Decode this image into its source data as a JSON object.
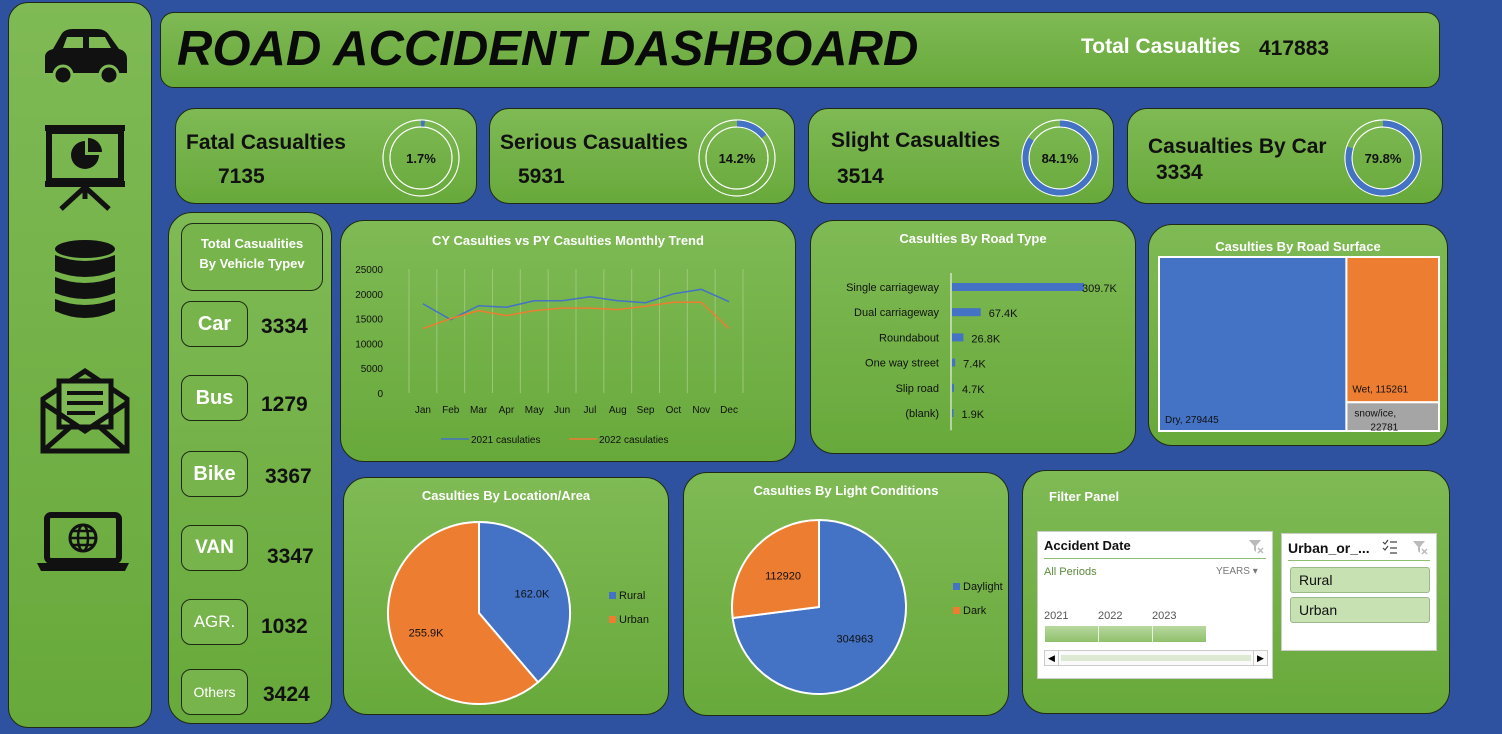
{
  "header": {
    "title": "ROAD ACCIDENT DASHBOARD",
    "total_label": "Total Casualties",
    "total_value": "417883"
  },
  "sidebar": {
    "icons": [
      "car-icon",
      "presentation-icon",
      "database-icon",
      "mail-icon",
      "laptop-globe-icon"
    ]
  },
  "kpis": [
    {
      "label": "Fatal Casualties",
      "value": "7135",
      "percent_label": "1.7%",
      "fraction": 0.017
    },
    {
      "label": "Serious Casualties",
      "value": "5931",
      "percent_label": "14.2%",
      "fraction": 0.142
    },
    {
      "label": "Slight Casualties",
      "value": "3514",
      "percent_label": "84.1%",
      "fraction": 0.841
    },
    {
      "label": "Casualties By Car",
      "value": "3334",
      "percent_label": "79.8%",
      "fraction": 0.798
    }
  ],
  "vehicle": {
    "title_line1": "Total Casualities",
    "title_line2": "By Vehicle Typev",
    "items": [
      {
        "label": "Car",
        "value": "3334"
      },
      {
        "label": "Bus",
        "value": "1279"
      },
      {
        "label": "Bike",
        "value": "3367"
      },
      {
        "label": "VAN",
        "value": "3347"
      },
      {
        "label": "AGR.",
        "value": "1032"
      },
      {
        "label": "Others",
        "value": "3424"
      }
    ]
  },
  "chart_data": [
    {
      "type": "line",
      "title": "CY Casulties vs PY Casulties Monthly Trend",
      "categories": [
        "Jan",
        "Feb",
        "Mar",
        "Apr",
        "May",
        "Jun",
        "Jul",
        "Aug",
        "Sep",
        "Oct",
        "Nov",
        "Dec"
      ],
      "y_ticks": [
        "0",
        "5000",
        "10000",
        "15000",
        "20000",
        "25000"
      ],
      "ylim": [
        0,
        25000
      ],
      "series": [
        {
          "name": "2021 casulaties",
          "color": "#4472c4",
          "values": [
            18000,
            14800,
            17600,
            17300,
            18600,
            18600,
            19400,
            18600,
            18200,
            20000,
            20900,
            18400
          ]
        },
        {
          "name": "2022 casulaties",
          "color": "#ed7d31",
          "values": [
            13000,
            15000,
            16600,
            15600,
            16600,
            17100,
            17100,
            16800,
            17500,
            18300,
            18300,
            13000
          ]
        }
      ]
    },
    {
      "type": "bar",
      "orientation": "horizontal",
      "title": "Casulties By Road Type",
      "categories": [
        "Single carriageway",
        "Dual carriageway",
        "Roundabout",
        "One way street",
        "Slip road",
        "(blank)"
      ],
      "values": [
        309700,
        67400,
        26800,
        7400,
        4700,
        1900
      ],
      "value_labels": [
        "309.7K",
        "67.4K",
        "26.8K",
        "7.4K",
        "4.7K",
        "1.9K"
      ],
      "color": "#4472c4"
    },
    {
      "type": "treemap",
      "title": "Casulties By Road Surface",
      "items": [
        {
          "label": "Dry, 279445",
          "value": 279445,
          "color": "#4472c4"
        },
        {
          "label": "Wet, 115261",
          "value": 115261,
          "color": "#ed7d31"
        },
        {
          "label_line1": "snow/ice,",
          "label_line2": "22781",
          "value": 22781,
          "color": "#a5a5a5"
        }
      ]
    },
    {
      "type": "pie",
      "title": "Casulties By Location/Area",
      "slices": [
        {
          "name": "Rural",
          "value": 162000,
          "label": "162.0K",
          "color": "#4472c4"
        },
        {
          "name": "Urban",
          "value": 255900,
          "label": "255.9K",
          "color": "#ed7d31"
        }
      ]
    },
    {
      "type": "pie",
      "title": "Casulties By Light Conditions",
      "slices": [
        {
          "name": "Daylight",
          "value": 304963,
          "label": "304963",
          "color": "#4472c4"
        },
        {
          "name": "Dark",
          "value": 112920,
          "label": "112920",
          "color": "#ed7d31"
        }
      ]
    }
  ],
  "filter": {
    "title": "Filter Panel",
    "date_slicer": {
      "title": "Accident Date",
      "periods": "All Periods",
      "level": "YEARS",
      "years": [
        "2021",
        "2022",
        "2023"
      ]
    },
    "area_slicer": {
      "title": "Urban_or_...",
      "options": [
        "Rural",
        "Urban"
      ]
    }
  }
}
